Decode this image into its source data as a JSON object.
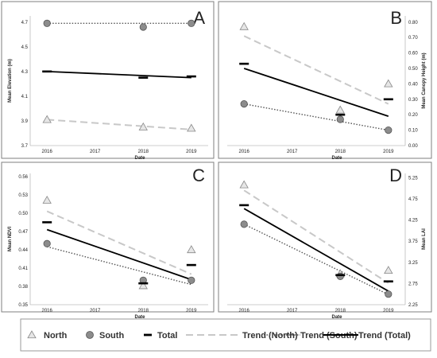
{
  "chart_data": [
    {
      "type": "scatter",
      "panel_letter": "A",
      "xlabel": "Date",
      "ylabel": "Mean Elevation (m)",
      "y_axis_side": "left",
      "x_ticks": [
        2016,
        2017,
        2018,
        2019
      ],
      "y_ticks": [
        "3.7",
        "3.9",
        "4.1",
        "4.3",
        "4.5",
        "4.7"
      ],
      "ylim": [
        3.7,
        4.75
      ],
      "x": [
        2016,
        2018,
        2019
      ],
      "series": [
        {
          "name": "North",
          "values": [
            3.91,
            3.85,
            3.84
          ]
        },
        {
          "name": "South",
          "values": [
            4.69,
            4.66,
            4.69
          ]
        },
        {
          "name": "Total",
          "values": [
            4.3,
            4.25,
            4.26
          ]
        }
      ],
      "trends": [
        {
          "name": "Trend (North)",
          "start": 3.91,
          "end": 3.83
        },
        {
          "name": "Trend (South)",
          "start": 4.69,
          "end": 4.69
        },
        {
          "name": "Trend (Total)",
          "start": 4.3,
          "end": 4.25
        }
      ]
    },
    {
      "type": "scatter",
      "panel_letter": "B",
      "xlabel": "Date",
      "ylabel": "Mean Canopy Height (m)",
      "y_axis_side": "right",
      "x_ticks": [
        2016,
        2017,
        2018,
        2019
      ],
      "y_ticks": [
        "0.00",
        "0.10",
        "0.20",
        "0.30",
        "0.40",
        "0.50",
        "0.60",
        "0.70",
        "0.80"
      ],
      "ylim": [
        0,
        0.84
      ],
      "x": [
        2016,
        2018,
        2019
      ],
      "series": [
        {
          "name": "North",
          "values": [
            0.77,
            0.23,
            0.4
          ]
        },
        {
          "name": "South",
          "values": [
            0.27,
            0.17,
            0.1
          ]
        },
        {
          "name": "Total",
          "values": [
            0.53,
            0.2,
            0.3
          ]
        }
      ],
      "trends": [
        {
          "name": "Trend (North)",
          "start": 0.71,
          "end": 0.27
        },
        {
          "name": "Trend (South)",
          "start": 0.27,
          "end": 0.1
        },
        {
          "name": "Trend (Total)",
          "start": 0.5,
          "end": 0.19
        }
      ]
    },
    {
      "type": "scatter",
      "panel_letter": "C",
      "xlabel": "Date",
      "ylabel": "Mean NDVI",
      "y_axis_side": "left",
      "x_ticks": [
        2016,
        2017,
        2018,
        2019
      ],
      "y_ticks": [
        "0.35",
        "0.38",
        "0.41",
        "0.44",
        "0.47",
        "0.50",
        "0.53",
        "0.56"
      ],
      "ylim": [
        0.35,
        0.565
      ],
      "x": [
        2016,
        2018,
        2019
      ],
      "series": [
        {
          "name": "North",
          "values": [
            0.521,
            0.381,
            0.44
          ]
        },
        {
          "name": "South",
          "values": [
            0.45,
            0.39,
            0.39
          ]
        },
        {
          "name": "Total",
          "values": [
            0.485,
            0.385,
            0.415
          ]
        }
      ],
      "trends": [
        {
          "name": "Trend (North)",
          "start": 0.503,
          "end": 0.4
        },
        {
          "name": "Trend (South)",
          "start": 0.445,
          "end": 0.383
        },
        {
          "name": "Trend (Total)",
          "start": 0.473,
          "end": 0.391
        }
      ]
    },
    {
      "type": "scatter",
      "panel_letter": "D",
      "xlabel": "Date",
      "ylabel": "Mean LAI",
      "y_axis_side": "right",
      "x_ticks": [
        2016,
        2017,
        2018,
        2019
      ],
      "y_ticks": [
        "2.25",
        "2.75",
        "3.25",
        "3.75",
        "4.25",
        "4.75",
        "5.25"
      ],
      "ylim": [
        2.25,
        5.35
      ],
      "x": [
        2016,
        2018,
        2019
      ],
      "series": [
        {
          "name": "North",
          "values": [
            5.08,
            2.98,
            3.06
          ]
        },
        {
          "name": "South",
          "values": [
            4.15,
            2.92,
            2.5
          ]
        },
        {
          "name": "Total",
          "values": [
            4.6,
            2.95,
            2.8
          ]
        }
      ],
      "trends": [
        {
          "name": "Trend (North)",
          "start": 4.95,
          "end": 2.76
        },
        {
          "name": "Trend (South)",
          "start": 4.15,
          "end": 2.49
        },
        {
          "name": "Trend (Total)",
          "start": 4.52,
          "end": 2.57
        }
      ]
    }
  ],
  "legend": {
    "items": [
      "North",
      "South",
      "Total",
      "Trend (North)",
      "Trend (South)",
      "Trend (Total)"
    ]
  },
  "colors": {
    "north_fill": "#e6e6e6",
    "south_fill": "#8c8c8c",
    "total": "#000000",
    "trend_north": "#c8c8c8",
    "trend_south": "#555555",
    "trend_total": "#000000",
    "border": "#7f7f7f"
  }
}
